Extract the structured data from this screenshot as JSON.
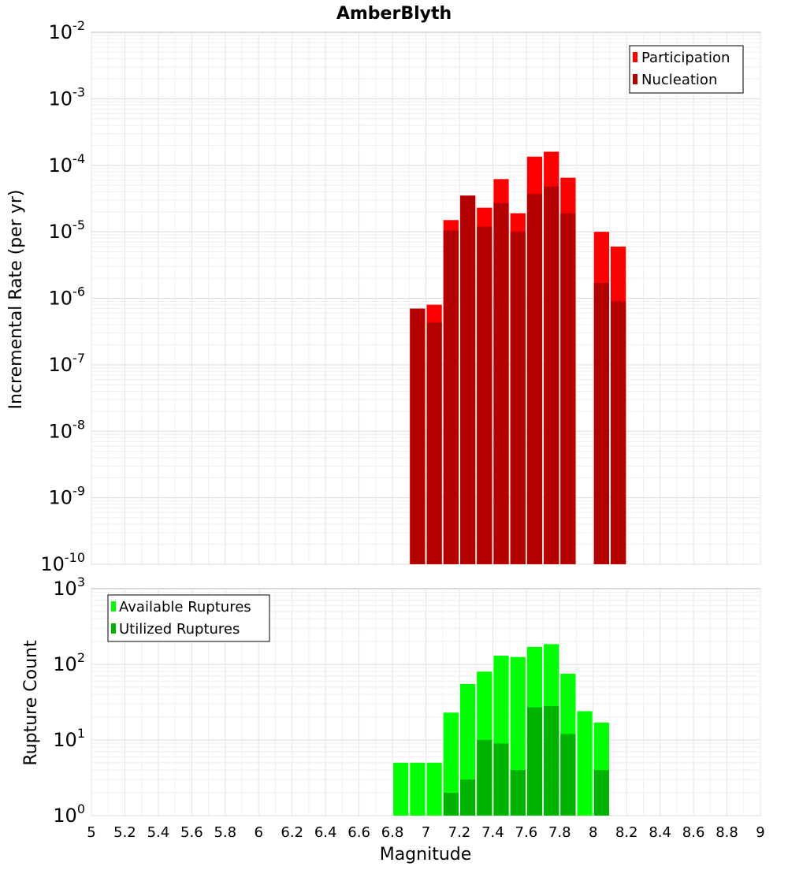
{
  "chart_data": [
    {
      "type": "bar",
      "title": "AmberBlyth",
      "xlabel": "",
      "ylabel": "Incremental Rate (per yr)",
      "yscale": "log",
      "xlim": [
        5,
        9
      ],
      "ylim": [
        1e-10,
        0.01
      ],
      "ytick_labels": [
        {
          "base": "10",
          "exp": "-10"
        },
        {
          "base": "10",
          "exp": "-9"
        },
        {
          "base": "10",
          "exp": "-8"
        },
        {
          "base": "10",
          "exp": "-7"
        },
        {
          "base": "10",
          "exp": "-6"
        },
        {
          "base": "10",
          "exp": "-5"
        },
        {
          "base": "10",
          "exp": "-4"
        },
        {
          "base": "10",
          "exp": "-3"
        },
        {
          "base": "10",
          "exp": "-2"
        }
      ],
      "grid": true,
      "legend_position": "top-right",
      "series": [
        {
          "name": "Participation",
          "color": "#ff0000",
          "points": [
            [
              6.95,
              7e-07
            ],
            [
              7.05,
              8e-07
            ],
            [
              7.15,
              1.5e-05
            ],
            [
              7.25,
              3.5e-05
            ],
            [
              7.35,
              2.3e-05
            ],
            [
              7.45,
              6.2e-05
            ],
            [
              7.55,
              1.9e-05
            ],
            [
              7.65,
              0.000135
            ],
            [
              7.75,
              0.00016
            ],
            [
              7.85,
              6.5e-05
            ],
            [
              8.05,
              1e-05
            ],
            [
              8.15,
              6e-06
            ]
          ]
        },
        {
          "name": "Nucleation",
          "color": "#b30000",
          "points": [
            [
              6.95,
              7e-07
            ],
            [
              7.05,
              4.3e-07
            ],
            [
              7.15,
              1.05e-05
            ],
            [
              7.25,
              3.5e-05
            ],
            [
              7.35,
              1.2e-05
            ],
            [
              7.45,
              2.7e-05
            ],
            [
              7.55,
              1e-05
            ],
            [
              7.65,
              3.7e-05
            ],
            [
              7.75,
              4.8e-05
            ],
            [
              7.85,
              1.9e-05
            ],
            [
              8.05,
              1.7e-06
            ],
            [
              8.15,
              9e-07
            ]
          ]
        }
      ]
    },
    {
      "type": "bar",
      "title": "",
      "xlabel": "Magnitude",
      "ylabel": "Rupture Count",
      "yscale": "log",
      "xlim": [
        5,
        9
      ],
      "ylim": [
        1,
        1000
      ],
      "ytick_labels": [
        {
          "base": "10",
          "exp": "0"
        },
        {
          "base": "10",
          "exp": "1"
        },
        {
          "base": "10",
          "exp": "2"
        },
        {
          "base": "10",
          "exp": "3"
        }
      ],
      "xtick_labels": [
        "5",
        "5.2",
        "5.4",
        "5.6",
        "5.8",
        "6",
        "6.2",
        "6.4",
        "6.6",
        "6.8",
        "7",
        "7.2",
        "7.4",
        "7.6",
        "7.8",
        "8",
        "8.2",
        "8.4",
        "8.6",
        "8.8",
        "9"
      ],
      "grid": true,
      "legend_position": "top-left",
      "series": [
        {
          "name": "Available Ruptures",
          "color": "#00ff00",
          "points": [
            [
              6.85,
              5
            ],
            [
              6.95,
              5
            ],
            [
              7.05,
              5
            ],
            [
              7.15,
              23
            ],
            [
              7.25,
              55
            ],
            [
              7.35,
              80
            ],
            [
              7.45,
              130
            ],
            [
              7.55,
              125
            ],
            [
              7.65,
              170
            ],
            [
              7.75,
              185
            ],
            [
              7.85,
              75
            ],
            [
              7.95,
              24
            ],
            [
              8.05,
              17
            ],
            [
              8.15,
              1
            ]
          ]
        },
        {
          "name": "Utilized Ruptures",
          "color": "#00b300",
          "points": [
            [
              6.95,
              1
            ],
            [
              7.05,
              1
            ],
            [
              7.15,
              2
            ],
            [
              7.25,
              3
            ],
            [
              7.35,
              10
            ],
            [
              7.45,
              9
            ],
            [
              7.55,
              4
            ],
            [
              7.65,
              27
            ],
            [
              7.75,
              28
            ],
            [
              7.85,
              12
            ],
            [
              8.05,
              4
            ],
            [
              8.15,
              1
            ]
          ]
        }
      ]
    }
  ]
}
